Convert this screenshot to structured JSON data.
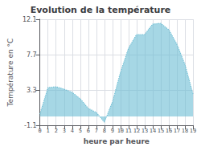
{
  "chart_data": {
    "type": "area",
    "title": "Evolution de la température",
    "xlabel": "heure par heure",
    "ylabel": "Température en °C",
    "x": [
      0,
      1,
      2,
      3,
      4,
      5,
      6,
      7,
      8,
      9,
      10,
      11,
      12,
      13,
      14,
      15,
      16,
      17,
      18,
      19
    ],
    "values": [
      0.3,
      3.6,
      3.7,
      3.4,
      3.0,
      2.2,
      1.0,
      0.5,
      -0.7,
      1.8,
      5.5,
      8.5,
      10.2,
      10.2,
      11.5,
      11.6,
      10.8,
      9.0,
      6.5,
      2.8
    ],
    "color": "#6bbdd4",
    "line_style": "dotted",
    "xlim": [
      0,
      19
    ],
    "xticks": [
      0,
      1,
      2,
      3,
      4,
      5,
      6,
      7,
      8,
      9,
      10,
      11,
      12,
      13,
      14,
      15,
      16,
      17,
      18,
      19
    ],
    "ylim": [
      -1.1,
      12.1
    ],
    "yticks": [
      -1.1,
      3.3,
      7.7,
      12.1
    ],
    "grid": true
  }
}
